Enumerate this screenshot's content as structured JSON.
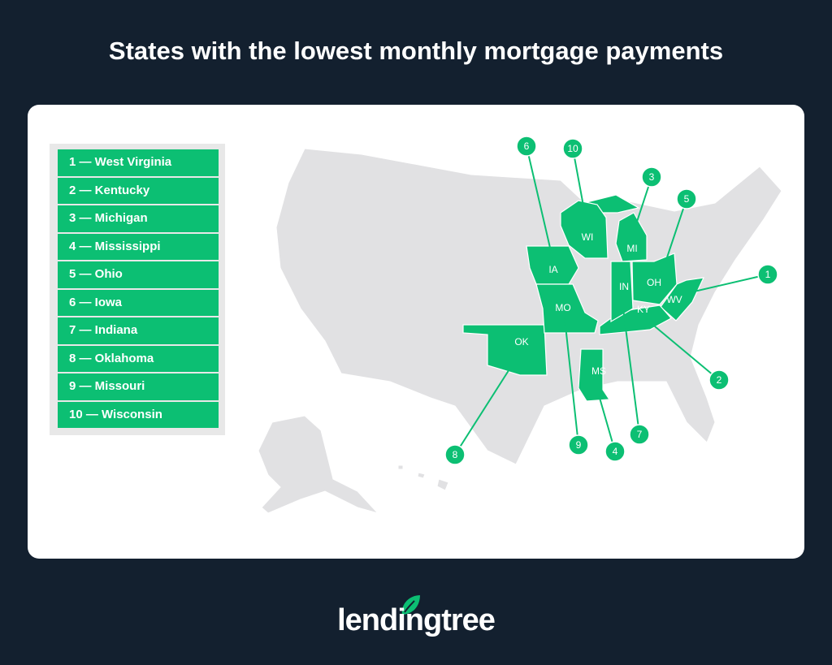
{
  "title": "States with the lowest monthly mortgage payments",
  "colors": {
    "background": "#13202f",
    "highlight": "#0cbf73",
    "base_state": "#e1e1e3"
  },
  "legend": [
    "1 — West Virginia",
    "2 — Kentucky",
    "3 — Michigan",
    "4 — Mississippi",
    "5 — Ohio",
    "6 — Iowa",
    "7 — Indiana",
    "8 — Oklahoma",
    "9 — Missouri",
    "10 — Wisconsin"
  ],
  "states": [
    {
      "abbr": "WV",
      "rank": "1"
    },
    {
      "abbr": "KY",
      "rank": "2"
    },
    {
      "abbr": "MI",
      "rank": "3"
    },
    {
      "abbr": "MS",
      "rank": "4"
    },
    {
      "abbr": "OH",
      "rank": "5"
    },
    {
      "abbr": "IA",
      "rank": "6"
    },
    {
      "abbr": "IN",
      "rank": "7"
    },
    {
      "abbr": "OK",
      "rank": "8"
    },
    {
      "abbr": "MO",
      "rank": "9"
    },
    {
      "abbr": "WI",
      "rank": "10"
    }
  ],
  "logo": {
    "text": "lendingtree"
  }
}
